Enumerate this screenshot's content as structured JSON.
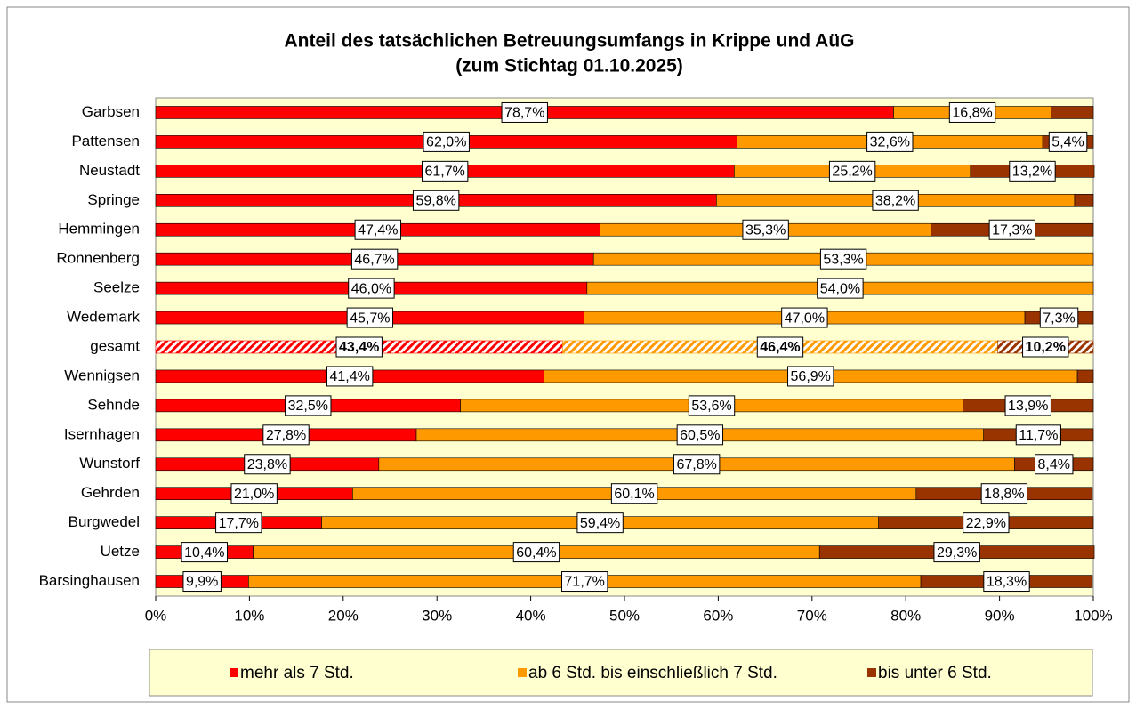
{
  "chart_data": {
    "type": "stacked_bar_horizontal",
    "title": "Anteil des tatsächlichen Betreuungsumfangs in Krippe und AüG",
    "subtitle": "(zum Stichtag 01.10.2025)",
    "categories": [
      "Garbsen",
      "Pattensen",
      "Neustadt",
      "Springe",
      "Hemmingen",
      "Ronnenberg",
      "Seelze",
      "Wedemark",
      "gesamt",
      "Wennigsen",
      "Sehnde",
      "Isernhagen",
      "Wunstorf",
      "Gehrden",
      "Burgwedel",
      "Uetze",
      "Barsinghausen"
    ],
    "highlight": "gesamt",
    "series": [
      {
        "name": "mehr als 7 Std.",
        "color": "#ff0000",
        "values": [
          78.7,
          62.0,
          61.7,
          59.8,
          47.4,
          46.7,
          46.0,
          45.7,
          43.4,
          41.4,
          32.5,
          27.8,
          23.8,
          21.0,
          17.7,
          10.4,
          9.9
        ],
        "value_labels": [
          "78,7%",
          "62,0%",
          "61,7%",
          "59,8%",
          "47,4%",
          "46,7%",
          "46,0%",
          "45,7%",
          "43,4%",
          "41,4%",
          "32,5%",
          "27,8%",
          "23,8%",
          "21,0%",
          "17,7%",
          "10,4%",
          "9,9%"
        ]
      },
      {
        "name": "ab 6 Std. bis einschließlich 7 Std.",
        "color": "#ff9900",
        "values": [
          16.8,
          32.6,
          25.2,
          38.2,
          35.3,
          53.3,
          54.0,
          47.0,
          46.4,
          56.9,
          53.6,
          60.5,
          67.8,
          60.1,
          59.4,
          60.4,
          71.7
        ],
        "value_labels": [
          "16,8%",
          "32,6%",
          "25,2%",
          "38,2%",
          "35,3%",
          "53,3%",
          "54,0%",
          "47,0%",
          "46,4%",
          "56,9%",
          "53,6%",
          "60,5%",
          "67,8%",
          "60,1%",
          "59,4%",
          "60,4%",
          "71,7%"
        ]
      },
      {
        "name": "bis unter 6 Std.",
        "color": "#993300",
        "values": [
          4.5,
          5.4,
          13.2,
          2.0,
          17.3,
          0,
          0,
          7.3,
          10.2,
          1.7,
          13.9,
          11.7,
          8.4,
          18.8,
          22.9,
          29.3,
          18.3
        ],
        "value_labels": [
          null,
          "5,4%",
          "13,2%",
          null,
          "17,3%",
          null,
          null,
          "7,3%",
          "10,2%",
          null,
          "13,9%",
          "11,7%",
          "8,4%",
          "18,8%",
          "22,9%",
          "29,3%",
          "18,3%"
        ]
      }
    ],
    "xlim": [
      0,
      100
    ],
    "xticks": [
      {
        "value": 0,
        "label": "0%"
      },
      {
        "value": 10,
        "label": "10%"
      },
      {
        "value": 20,
        "label": "20%"
      },
      {
        "value": 30,
        "label": "30%"
      },
      {
        "value": 40,
        "label": "40%"
      },
      {
        "value": 50,
        "label": "50%"
      },
      {
        "value": 60,
        "label": "60%"
      },
      {
        "value": 70,
        "label": "70%"
      },
      {
        "value": 80,
        "label": "80%"
      },
      {
        "value": 90,
        "label": "90%"
      },
      {
        "value": 100,
        "label": "100%"
      }
    ],
    "legend": "bottom"
  }
}
